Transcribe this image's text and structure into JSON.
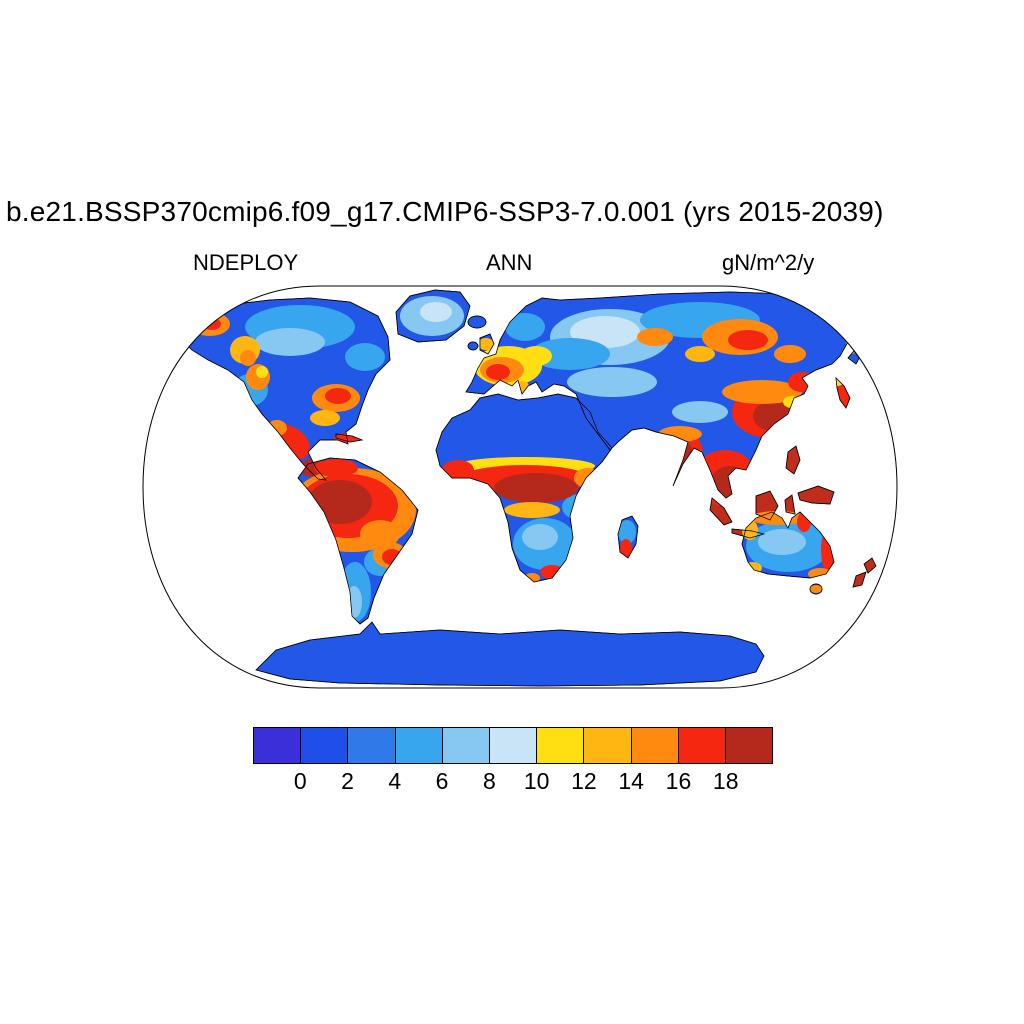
{
  "title": "b.e21.BSSP370cmip6.f09_g17.CMIP6-SSP3-7.0.001 (yrs 2015-2039)",
  "map_labels": {
    "variable": "NDEPLOY",
    "season": "ANN",
    "units": "gN/m^2/y"
  },
  "colorbar": {
    "tick_labels": [
      "0",
      "2",
      "4",
      "6",
      "8",
      "10",
      "12",
      "14",
      "16",
      "18"
    ],
    "colors": [
      "#3a2fd8",
      "#1f4fe8",
      "#2f7ae8",
      "#38a5ef",
      "#86c8f2",
      "#c9e4f6",
      "#ffdf12",
      "#ffb612",
      "#ff8a0f",
      "#f52711",
      "#b5281c"
    ]
  },
  "chart_data": {
    "type": "heatmap",
    "title": "b.e21.BSSP370cmip6.f09_g17.CMIP6-SSP3-7.0.001 (yrs 2015-2039)",
    "variable": "NDEPLOY",
    "statistic": "ANN",
    "units": "gN/m^2/y",
    "years": "2015-2039",
    "projection": "robinson-world",
    "legend_position": "bottom",
    "levels": [
      0,
      2,
      4,
      6,
      8,
      10,
      12,
      14,
      16,
      18
    ],
    "palette": [
      "#3a2fd8",
      "#1f4fe8",
      "#2f7ae8",
      "#38a5ef",
      "#86c8f2",
      "#c9e4f6",
      "#ffdf12",
      "#ffb612",
      "#ff8a0f",
      "#f52711",
      "#b5281c"
    ],
    "ocean": "no data (white)",
    "regions": [
      {
        "region": "Greenland",
        "value_gN_m2_y": "2-8"
      },
      {
        "region": "Canada & Alaska",
        "value_gN_m2_y": "0-6 with 10-16 patches in Alaska and western Canada"
      },
      {
        "region": "Western United States",
        "value_gN_m2_y": "8-14"
      },
      {
        "region": "Eastern United States",
        "value_gN_m2_y": "14-18"
      },
      {
        "region": "Mexico & Central America",
        "value_gN_m2_y": ">18"
      },
      {
        "region": "Caribbean",
        "value_gN_m2_y": "16->18"
      },
      {
        "region": "Amazon basin",
        "value_gN_m2_y": ">18"
      },
      {
        "region": "Southeastern Brazil",
        "value_gN_m2_y": "14->18"
      },
      {
        "region": "Patagonia & southern Andes",
        "value_gN_m2_y": "2-6"
      },
      {
        "region": "Western & Central Europe",
        "value_gN_m2_y": "10->18"
      },
      {
        "region": "Scandinavia",
        "value_gN_m2_y": "2-6"
      },
      {
        "region": "Sahara & Arabia",
        "value_gN_m2_y": "0-2"
      },
      {
        "region": "Sahel & Central Africa",
        "value_gN_m2_y": "16->18"
      },
      {
        "region": "Southern Africa",
        "value_gN_m2_y": "4-10 with >16 patches"
      },
      {
        "region": "Madagascar",
        "value_gN_m2_y": "4-8 with >16 patches"
      },
      {
        "region": "Siberia",
        "value_gN_m2_y": "2-8 with 12->18 patches"
      },
      {
        "region": "Central Asia",
        "value_gN_m2_y": "6-10"
      },
      {
        "region": "India",
        "value_gN_m2_y": ">18"
      },
      {
        "region": "Eastern China",
        "value_gN_m2_y": "16->18"
      },
      {
        "region": "Southeast Asia",
        "value_gN_m2_y": ">18"
      },
      {
        "region": "Indonesia & New Guinea",
        "value_gN_m2_y": ">18"
      },
      {
        "region": "Japan & Korea",
        "value_gN_m2_y": "14->18"
      },
      {
        "region": "Australia interior",
        "value_gN_m2_y": "4-8"
      },
      {
        "region": "Australia north & east coasts",
        "value_gN_m2_y": "12->18"
      },
      {
        "region": "New Zealand",
        "value_gN_m2_y": "16->18"
      },
      {
        "region": "Antarctica",
        "value_gN_m2_y": "0-2"
      }
    ]
  }
}
